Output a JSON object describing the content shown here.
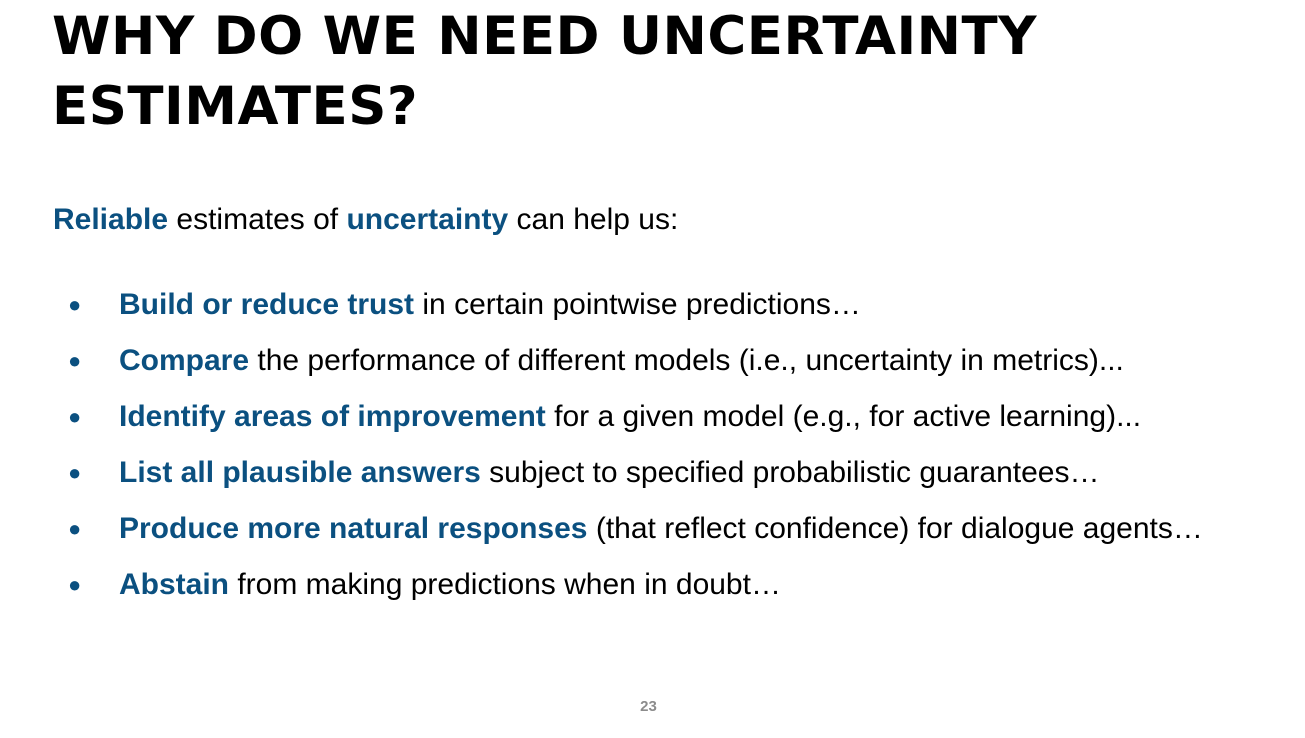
{
  "slide": {
    "title": "WHY DO WE NEED UNCERTAINTY ESTIMATES?",
    "intro": {
      "part1": "Reliable",
      "part2": " estimates of ",
      "part3": "uncertainty",
      "part4": " can help us:"
    },
    "bullets": [
      {
        "emphasis": "Build or reduce trust",
        "rest": " in certain pointwise predictions…"
      },
      {
        "emphasis": "Compare",
        "rest": " the performance of different models (i.e., uncertainty in metrics)..."
      },
      {
        "emphasis": "Identify areas of improvement",
        "rest": " for a given model (e.g., for active learning)..."
      },
      {
        "emphasis": "List all plausible answers",
        "rest": " subject to specified probabilistic guarantees…"
      },
      {
        "emphasis": "Produce more natural responses",
        "rest": " (that reflect confidence) for dialogue agents…"
      },
      {
        "emphasis": "Abstain",
        "rest": " from making predictions when in doubt…"
      }
    ],
    "bullet_glyph": "●",
    "page_number": "23",
    "accent_color": "#0b5080"
  }
}
